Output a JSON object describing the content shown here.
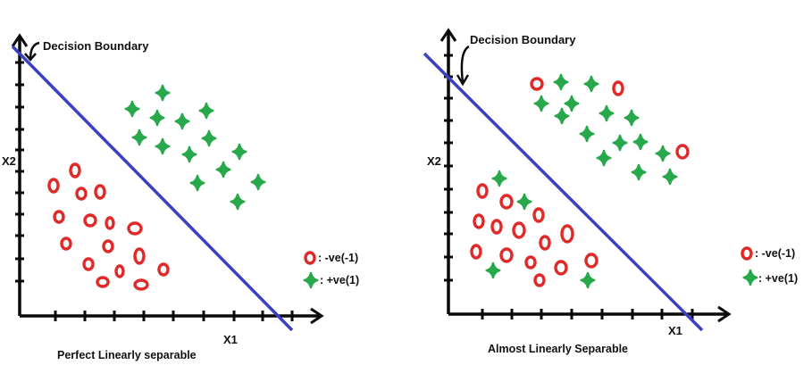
{
  "colors": {
    "axis": "#0a0a0a",
    "boundary": "#3a3fc4",
    "negative": "#e02a2a",
    "positive": "#27a84a"
  },
  "icons": {
    "negative": "red-ring-icon",
    "positive": "green-star-icon"
  },
  "panels": [
    {
      "id": "left",
      "boundary_label": "Decision Boundary",
      "y_axis_label": "X2",
      "x_axis_label": "X1",
      "caption": "Perfect Linearly separable",
      "legend": {
        "negative": ": -ve(-1)",
        "positive": ": +ve(1)"
      }
    },
    {
      "id": "right",
      "boundary_label": "Decision Boundary",
      "y_axis_label": "X2",
      "x_axis_label": "X1",
      "caption": "Almost Linearly Separable",
      "legend": {
        "negative": ": -ve(-1)",
        "positive": ": +ve(1)"
      }
    }
  ]
}
